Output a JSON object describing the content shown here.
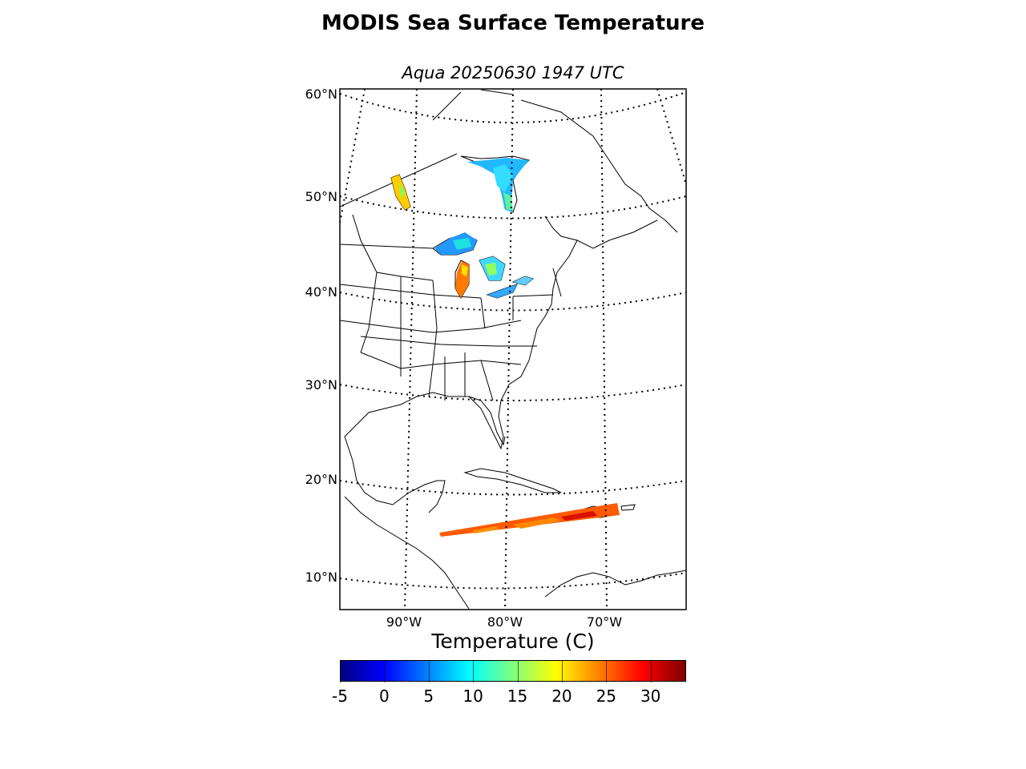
{
  "title": "MODIS Sea Surface Temperature",
  "subtitle": "Aqua 20250630 1947 UTC",
  "map": {
    "projection": "lambert-conformal",
    "lat_labels": [
      "60°N",
      "50°N",
      "40°N",
      "30°N",
      "20°N",
      "10°N"
    ],
    "lon_labels": [
      "90°W",
      "80°W",
      "70°W"
    ],
    "layers": [
      "coastlines",
      "country-borders",
      "state-borders",
      "graticule-dotted",
      "sst-swaths"
    ]
  },
  "colorbar": {
    "title": "Temperature (C)",
    "min": -5,
    "max": 34,
    "tick_labels": [
      "-5",
      "0",
      "5",
      "10",
      "15",
      "20",
      "25",
      "30"
    ],
    "tick_values": [
      -5,
      0,
      5,
      10,
      15,
      20,
      25,
      30
    ],
    "colormap": "jet",
    "colors": [
      "#00007f",
      "#0000ff",
      "#007fff",
      "#00ffff",
      "#7fff7f",
      "#ffff00",
      "#ff7f00",
      "#ff0000",
      "#7f0000"
    ]
  },
  "sst_regions": [
    {
      "name": "Hudson Bay / James Bay",
      "dominant_color": "#00c8ff"
    },
    {
      "name": "Great Lakes",
      "dominant_color": "#40e0c0"
    },
    {
      "name": "Lake Winnipeg",
      "dominant_color": "#ffd000"
    },
    {
      "name": "Caribbean swath",
      "dominant_color": "#ff5000"
    }
  ]
}
